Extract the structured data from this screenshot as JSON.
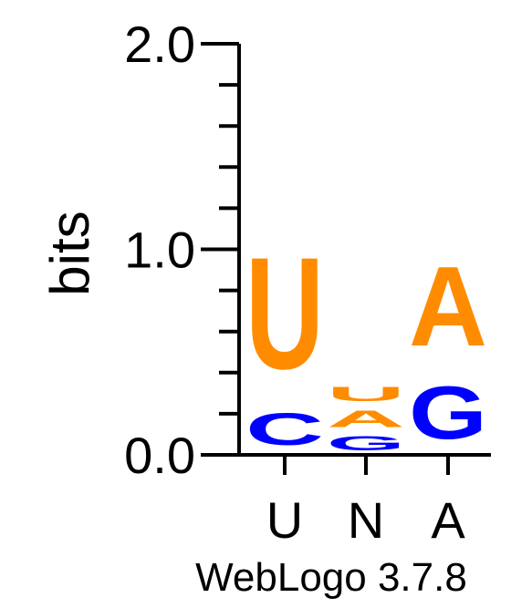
{
  "chart_data": {
    "type": "sequence-logo",
    "ylabel": "bits",
    "ylim": [
      0,
      2.0
    ],
    "yticks": [
      {
        "value": 0.0,
        "label": "0.0"
      },
      {
        "value": 1.0,
        "label": "1.0"
      },
      {
        "value": 2.0,
        "label": "2.0"
      }
    ],
    "minor_tick_step": 0.2,
    "positions": [
      {
        "label": "U",
        "stack": [
          {
            "letter": "C",
            "bits": 0.25,
            "color": "#0000ff"
          },
          {
            "letter": "U",
            "bits": 0.87,
            "color": "#ff8c00"
          }
        ]
      },
      {
        "label": "N",
        "stack": [
          {
            "letter": "G",
            "bits": 0.11,
            "color": "#0000ff"
          },
          {
            "letter": "A",
            "bits": 0.13,
            "color": "#ff8c00"
          },
          {
            "letter": "U",
            "bits": 0.11,
            "color": "#ff8c00"
          }
        ]
      },
      {
        "label": "A",
        "stack": [
          {
            "letter": "G",
            "bits": 0.41,
            "color": "#0000ff"
          },
          {
            "letter": "A",
            "bits": 0.62,
            "color": "#ff8c00"
          }
        ]
      }
    ]
  },
  "footer": {
    "text": "WebLogo 3.7.8"
  }
}
